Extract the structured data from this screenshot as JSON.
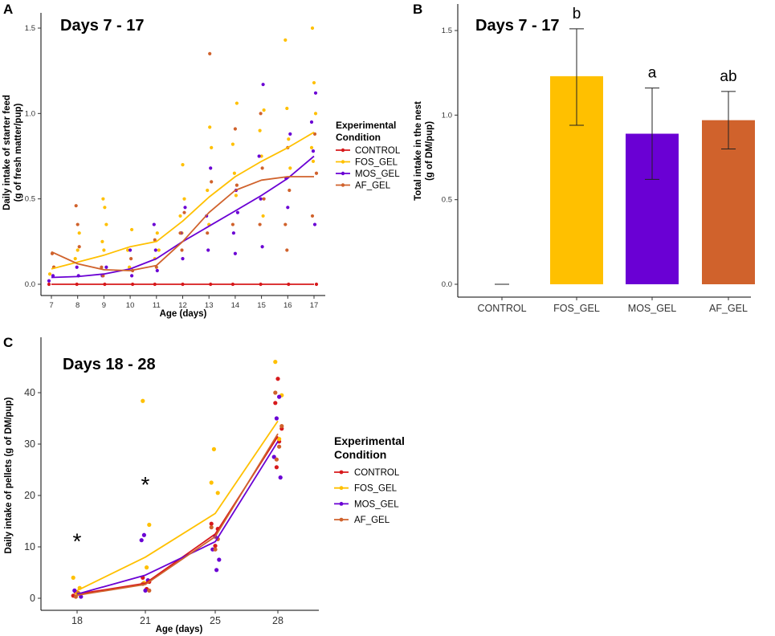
{
  "panels": {
    "A": {
      "letter": "A",
      "inset_title": "Days 7 - 17"
    },
    "B": {
      "letter": "B",
      "inset_title": "Days 7 - 17"
    },
    "C": {
      "letter": "C",
      "inset_title": "Days 18 - 28"
    }
  },
  "legend": {
    "title_line1": "Experimental",
    "title_line2": "Condition",
    "items": [
      {
        "label": "CONTROL",
        "color": "#d7191c"
      },
      {
        "label": "FOS_GEL",
        "color": "#ffc000"
      },
      {
        "label": "MOS_GEL",
        "color": "#6a00d4"
      },
      {
        "label": "AF_GEL",
        "color": "#d0622c"
      }
    ]
  },
  "chart_data": [
    {
      "panel": "A",
      "type": "scatter",
      "title": "Days 7 - 17",
      "xlabel": "Age (days)",
      "ylabel_line1": "Daily intake of starter feed",
      "ylabel_line2": "(g of fresh matter/pup)",
      "xlim": [
        7,
        17
      ],
      "ylim": [
        0,
        1.5
      ],
      "x_ticks": [
        7,
        8,
        9,
        10,
        11,
        12,
        13,
        14,
        15,
        16,
        17
      ],
      "y_ticks": [
        0.0,
        0.5,
        1.0,
        1.5
      ],
      "y_tick_labels": [
        "0.0",
        "0.5",
        "1.0",
        "1.5"
      ],
      "smooth_lines": [
        {
          "name": "CONTROL",
          "color": "#d7191c",
          "x": [
            7,
            9,
            11,
            13,
            15,
            17
          ],
          "y": [
            0.0,
            0.0,
            0.0,
            0.0,
            0.0,
            0.0
          ]
        },
        {
          "name": "FOS_GEL",
          "color": "#ffc000",
          "x": [
            7,
            8,
            9,
            10,
            11,
            12,
            13,
            14,
            15,
            16,
            17
          ],
          "y": [
            0.09,
            0.13,
            0.17,
            0.22,
            0.25,
            0.37,
            0.51,
            0.63,
            0.72,
            0.8,
            0.89
          ]
        },
        {
          "name": "MOS_GEL",
          "color": "#6a00d4",
          "x": [
            7,
            8,
            9,
            10,
            11,
            12,
            13,
            14,
            15,
            16,
            17
          ],
          "y": [
            0.04,
            0.045,
            0.06,
            0.09,
            0.15,
            0.25,
            0.34,
            0.43,
            0.52,
            0.62,
            0.75
          ]
        },
        {
          "name": "AF_GEL",
          "color": "#d0622c",
          "x": [
            7,
            8,
            9,
            10,
            11,
            12,
            13,
            14,
            15,
            16,
            17
          ],
          "y": [
            0.19,
            0.12,
            0.085,
            0.08,
            0.11,
            0.25,
            0.42,
            0.55,
            0.61,
            0.63,
            0.63
          ]
        }
      ],
      "scatter_points": [
        {
          "name": "CONTROL",
          "color": "#d7191c",
          "x": [
            7,
            8,
            9,
            10,
            11,
            12,
            13,
            14,
            15,
            16,
            17
          ],
          "y": [
            0,
            0,
            0,
            0,
            0,
            0,
            0,
            0,
            0,
            0,
            0
          ]
        },
        {
          "name": "FOS_GEL",
          "color": "#ffc000",
          "x": [
            7,
            7,
            8,
            8,
            8,
            9,
            9,
            9,
            9,
            9,
            10,
            10,
            10,
            11,
            11,
            11,
            12,
            12,
            12,
            12,
            13,
            13,
            13,
            13,
            14,
            14,
            14,
            14,
            15,
            15,
            15,
            15,
            16,
            16,
            16,
            16,
            17,
            17,
            17,
            17,
            17
          ],
          "y": [
            0.1,
            0.06,
            0.2,
            0.3,
            0.15,
            0.5,
            0.45,
            0.35,
            0.25,
            0.2,
            0.32,
            0.2,
            0.1,
            0.3,
            0.2,
            0.15,
            0.7,
            0.5,
            0.4,
            0.3,
            0.92,
            0.8,
            0.55,
            0.35,
            1.06,
            0.82,
            0.65,
            0.52,
            1.02,
            0.9,
            0.75,
            0.4,
            1.43,
            1.03,
            0.85,
            0.68,
            1.5,
            1.18,
            1.0,
            0.8,
            0.72
          ]
        },
        {
          "name": "MOS_GEL",
          "color": "#6a00d4",
          "x": [
            7,
            7,
            8,
            8,
            9,
            9,
            10,
            10,
            11,
            11,
            11,
            12,
            12,
            12,
            13,
            13,
            13,
            14,
            14,
            14,
            14,
            15,
            15,
            15,
            15,
            16,
            16,
            16,
            17,
            17,
            17,
            17
          ],
          "y": [
            0.05,
            0.02,
            0.1,
            0.05,
            0.1,
            0.05,
            0.2,
            0.05,
            0.35,
            0.2,
            0.08,
            0.45,
            0.3,
            0.15,
            0.68,
            0.4,
            0.2,
            0.55,
            0.42,
            0.3,
            0.18,
            1.17,
            0.75,
            0.5,
            0.22,
            0.88,
            0.62,
            0.45,
            1.12,
            0.95,
            0.78,
            0.35
          ]
        },
        {
          "name": "AF_GEL",
          "color": "#d0622c",
          "x": [
            7,
            7,
            8,
            8,
            8,
            9,
            9,
            10,
            10,
            11,
            11,
            12,
            12,
            12,
            13,
            13,
            13,
            14,
            14,
            14,
            15,
            15,
            15,
            15,
            16,
            16,
            16,
            16,
            17,
            17,
            17
          ],
          "y": [
            0.18,
            0.1,
            0.46,
            0.35,
            0.22,
            0.1,
            0.05,
            0.15,
            0.08,
            0.26,
            0.1,
            0.42,
            0.3,
            0.2,
            1.35,
            0.6,
            0.3,
            0.91,
            0.58,
            0.35,
            1.0,
            0.68,
            0.5,
            0.35,
            0.8,
            0.55,
            0.35,
            0.2,
            0.88,
            0.65,
            0.4
          ]
        }
      ]
    },
    {
      "panel": "B",
      "type": "bar",
      "title": "Days 7 - 17",
      "xlabel": "",
      "ylabel_line1": "Total intake in the nest",
      "ylabel_line2": "(g of DM/pup)",
      "ylim": [
        0,
        1.5
      ],
      "y_ticks": [
        0.0,
        0.5,
        1.0,
        1.5
      ],
      "y_tick_labels": [
        "0.0",
        "0.5",
        "1.0",
        "1.5"
      ],
      "categories": [
        "CONTROL",
        "FOS_GEL",
        "MOS_GEL",
        "AF_GEL"
      ],
      "values": [
        0.0,
        1.23,
        0.89,
        0.97
      ],
      "error_low": [
        0.0,
        0.94,
        0.62,
        0.8
      ],
      "error_high": [
        0.0,
        1.51,
        1.16,
        1.14
      ],
      "colors": [
        "#d7191c",
        "#ffc000",
        "#6a00d4",
        "#d0622c"
      ],
      "significance_letters": [
        "",
        "b",
        "a",
        "ab"
      ]
    },
    {
      "panel": "C",
      "type": "line",
      "title": "Days 18 - 28",
      "xlabel": "Age (days)",
      "ylabel": "Daily intake of pellets (g of DM/pup)",
      "xlim": [
        16.5,
        29.5
      ],
      "ylim": [
        -1.5,
        47
      ],
      "x_ticks": [
        18,
        21,
        25,
        28
      ],
      "y_ticks": [
        0,
        10,
        20,
        30,
        40
      ],
      "annotations": [
        {
          "text": "*",
          "x": 18,
          "y": 11.5
        },
        {
          "text": "*",
          "x": 21,
          "y": 22.5
        }
      ],
      "x": [
        18,
        21,
        25,
        28
      ],
      "series": [
        {
          "name": "CONTROL",
          "color": "#d7191c",
          "values": [
            0.8,
            2.9,
            12.5,
            31.5
          ]
        },
        {
          "name": "FOS_GEL",
          "color": "#ffc000",
          "values": [
            1.5,
            8.0,
            16.5,
            34.5
          ]
        },
        {
          "name": "MOS_GEL",
          "color": "#6a00d4",
          "values": [
            0.8,
            4.5,
            11.0,
            30.5
          ]
        },
        {
          "name": "AF_GEL",
          "color": "#d0622c",
          "values": [
            0.6,
            2.7,
            12.0,
            32.0
          ]
        }
      ],
      "scatter_points": [
        {
          "name": "CONTROL",
          "color": "#d7191c",
          "x": [
            18,
            18,
            21,
            21,
            21,
            25,
            25,
            25,
            28,
            28,
            28,
            28,
            28
          ],
          "y": [
            0.5,
            1.2,
            1.8,
            3.2,
            4.0,
            10.2,
            13.5,
            14.5,
            25.5,
            30.5,
            33.0,
            38.0,
            42.7
          ]
        },
        {
          "name": "FOS_GEL",
          "color": "#ffc000",
          "x": [
            18,
            18,
            18,
            21,
            21,
            21,
            21,
            25,
            25,
            25,
            25,
            28,
            28,
            28
          ],
          "y": [
            1.0,
            2.0,
            4.0,
            3.0,
            6.0,
            14.3,
            38.4,
            12.0,
            20.5,
            22.5,
            29.0,
            31.0,
            39.5,
            46.0
          ]
        },
        {
          "name": "MOS_GEL",
          "color": "#6a00d4",
          "x": [
            18,
            18,
            21,
            21,
            21,
            21,
            25,
            25,
            25,
            25,
            28,
            28,
            28,
            28
          ],
          "y": [
            0.3,
            1.5,
            1.5,
            3.5,
            11.3,
            12.3,
            5.5,
            7.5,
            9.5,
            12.0,
            23.5,
            27.5,
            35.0,
            39.2
          ]
        },
        {
          "name": "AF_GEL",
          "color": "#d0622c",
          "x": [
            18,
            18,
            21,
            21,
            25,
            25,
            25,
            28,
            28,
            28,
            28
          ],
          "y": [
            0.3,
            1.0,
            1.5,
            2.8,
            9.5,
            11.5,
            13.8,
            27.0,
            29.5,
            33.5,
            40.0
          ]
        }
      ]
    }
  ]
}
